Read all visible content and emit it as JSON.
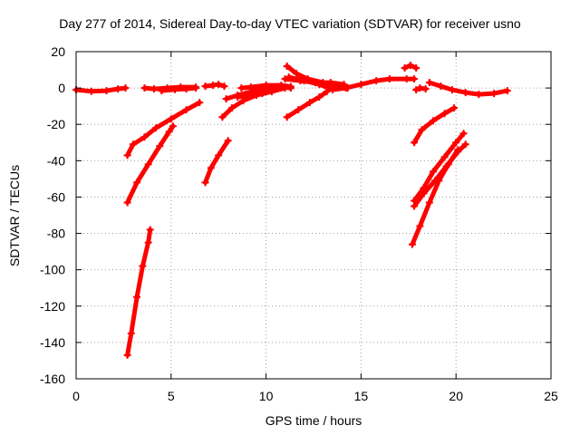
{
  "chart_data": {
    "type": "scatter",
    "title": "Day 277 of 2014, Sidereal Day-to-day VTEC variation (SDTVAR) for receiver usno",
    "xlabel": "GPS time / hours",
    "ylabel": "SDTVAR / TECUs",
    "xlim": [
      0,
      25
    ],
    "ylim": [
      -160,
      20
    ],
    "xticks": [
      0,
      5,
      10,
      15,
      20,
      25
    ],
    "yticks": [
      -160,
      -140,
      -120,
      -100,
      -80,
      -60,
      -40,
      -20,
      0,
      20
    ],
    "grid": true,
    "colors": {
      "series": "#ff0000",
      "grid": "#a0a0a0",
      "axis": "#000000"
    },
    "series": [
      {
        "color": "#ff0000",
        "tracks": [
          [
            [
              0.0,
              -1.0
            ],
            [
              0.8,
              -1.8
            ],
            [
              1.6,
              -1.5
            ],
            [
              2.2,
              -0.5
            ],
            [
              2.6,
              0.0
            ]
          ],
          [
            [
              3.6,
              0.0
            ],
            [
              4.1,
              -0.5
            ],
            [
              4.8,
              0.0
            ],
            [
              5.5,
              0.5
            ],
            [
              6.3,
              0.5
            ]
          ],
          [
            [
              4.5,
              -1.5
            ],
            [
              5.2,
              -0.8
            ],
            [
              5.8,
              -0.5
            ],
            [
              6.3,
              0.0
            ]
          ],
          [
            [
              2.7,
              -147
            ],
            [
              2.9,
              -135
            ],
            [
              3.2,
              -115
            ],
            [
              3.5,
              -98
            ],
            [
              3.8,
              -85
            ],
            [
              3.9,
              -78
            ]
          ],
          [
            [
              2.7,
              -63
            ],
            [
              3.2,
              -52
            ],
            [
              3.8,
              -42
            ],
            [
              4.4,
              -32
            ],
            [
              4.9,
              -24
            ],
            [
              5.1,
              -21
            ]
          ],
          [
            [
              2.7,
              -37
            ],
            [
              3.0,
              -31
            ],
            [
              3.6,
              -27
            ],
            [
              4.2,
              -22
            ],
            [
              5.0,
              -17
            ],
            [
              5.8,
              -12
            ],
            [
              6.5,
              -8
            ]
          ],
          [
            [
              6.8,
              -52
            ],
            [
              7.1,
              -44
            ],
            [
              7.5,
              -37
            ],
            [
              8.0,
              -29
            ]
          ],
          [
            [
              6.8,
              1.0
            ],
            [
              7.2,
              1.5
            ],
            [
              7.5,
              2.0
            ],
            [
              7.8,
              1.0
            ]
          ],
          [
            [
              7.7,
              -16
            ],
            [
              8.2,
              -11
            ],
            [
              8.8,
              -7
            ],
            [
              9.5,
              -4
            ],
            [
              10.3,
              -2
            ],
            [
              11.0,
              0.0
            ]
          ],
          [
            [
              7.9,
              -6
            ],
            [
              8.5,
              -4
            ],
            [
              9.2,
              -2
            ],
            [
              10.0,
              0.0
            ],
            [
              10.8,
              0.5
            ],
            [
              11.3,
              0.0
            ]
          ],
          [
            [
              8.7,
              0.0
            ],
            [
              9.2,
              0.5
            ],
            [
              10.0,
              1.5
            ],
            [
              10.8,
              1.5
            ],
            [
              11.3,
              0.8
            ]
          ],
          [
            [
              8.5,
              -5
            ],
            [
              9.2,
              -4
            ],
            [
              9.8,
              -3
            ],
            [
              10.4,
              -1
            ]
          ],
          [
            [
              11.1,
              12
            ],
            [
              11.6,
              8
            ],
            [
              12.2,
              5
            ],
            [
              13.0,
              3
            ],
            [
              13.8,
              1
            ],
            [
              14.3,
              0.0
            ]
          ],
          [
            [
              11.2,
              6
            ],
            [
              12.0,
              4
            ],
            [
              12.8,
              2
            ],
            [
              13.5,
              -1
            ],
            [
              14.2,
              0.0
            ],
            [
              15.0,
              2
            ],
            [
              15.8,
              4
            ],
            [
              16.5,
              5
            ],
            [
              17.4,
              5
            ],
            [
              17.8,
              5
            ]
          ],
          [
            [
              11.0,
              5
            ],
            [
              11.8,
              4
            ],
            [
              12.6,
              3
            ],
            [
              13.4,
              3
            ],
            [
              14.1,
              2
            ]
          ],
          [
            [
              11.1,
              -16
            ],
            [
              11.7,
              -12
            ],
            [
              12.3,
              -8
            ],
            [
              12.8,
              -5
            ],
            [
              13.2,
              -2
            ]
          ],
          [
            [
              17.3,
              11
            ],
            [
              17.6,
              12.5
            ],
            [
              17.9,
              11
            ]
          ],
          [
            [
              17.9,
              -1
            ],
            [
              18.1,
              0.0
            ],
            [
              18.4,
              -0.5
            ]
          ],
          [
            [
              18.6,
              3
            ],
            [
              19.2,
              1
            ],
            [
              19.8,
              -1
            ],
            [
              20.5,
              -2.5
            ],
            [
              21.2,
              -3.5
            ],
            [
              22.0,
              -3
            ],
            [
              22.7,
              -1.5
            ]
          ],
          [
            [
              17.8,
              -30
            ],
            [
              18.2,
              -23
            ],
            [
              18.8,
              -18
            ],
            [
              19.4,
              -14
            ],
            [
              19.9,
              -11
            ]
          ],
          [
            [
              17.8,
              -65
            ],
            [
              18.3,
              -58
            ],
            [
              18.9,
              -51
            ],
            [
              19.5,
              -43
            ],
            [
              20.1,
              -35
            ],
            [
              20.5,
              -31
            ]
          ],
          [
            [
              17.8,
              -62
            ],
            [
              18.3,
              -55
            ],
            [
              18.8,
              -46
            ],
            [
              19.4,
              -38
            ],
            [
              20.0,
              -30
            ],
            [
              20.4,
              -25
            ]
          ],
          [
            [
              17.7,
              -86
            ],
            [
              18.1,
              -76
            ],
            [
              18.6,
              -63
            ],
            [
              19.1,
              -51
            ],
            [
              19.6,
              -42
            ],
            [
              20.1,
              -34
            ]
          ]
        ]
      }
    ]
  }
}
